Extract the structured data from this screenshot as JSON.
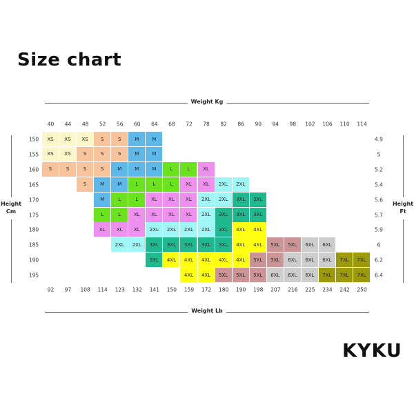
{
  "title": "Size chart",
  "brand": "KYKU",
  "chart_data": {
    "type": "table",
    "top_axis_label": "Weight Kg",
    "bottom_axis_label": "Weight Lb",
    "left_axis_label": [
      "Height",
      "Cm"
    ],
    "right_axis_label": [
      "Height",
      "Ft"
    ],
    "weight_kg": [
      "40",
      "44",
      "48",
      "52",
      "56",
      "60",
      "64",
      "68",
      "72",
      "78",
      "82",
      "86",
      "90",
      "94",
      "98",
      "102",
      "106",
      "110",
      "114"
    ],
    "weight_lb": [
      "92",
      "97",
      "108",
      "114",
      "123",
      "132",
      "141",
      "150",
      "159",
      "172",
      "180",
      "190",
      "198",
      "207",
      "216",
      "225",
      "234",
      "242",
      "250"
    ],
    "height_cm": [
      "150",
      "155",
      "160",
      "165",
      "170",
      "175",
      "180",
      "185",
      "190",
      "195"
    ],
    "height_ft": [
      "4.9",
      "5",
      "5.2",
      "5.4",
      "5.6",
      "5.7",
      "5.9",
      "6",
      "6.2",
      "6.4"
    ],
    "sizes": [
      [
        "XS",
        "XS",
        "XS",
        "S",
        "S",
        "M",
        "M",
        "",
        "",
        "",
        "",
        "",
        "",
        "",
        "",
        "",
        "",
        "",
        ""
      ],
      [
        "XS",
        "XS",
        "S",
        "S",
        "S",
        "M",
        "M",
        "",
        "",
        "",
        "",
        "",
        "",
        "",
        "",
        "",
        "",
        "",
        ""
      ],
      [
        "S",
        "S",
        "S",
        "S",
        "M",
        "M",
        "M",
        "L",
        "L",
        "XL",
        "",
        "",
        "",
        "",
        "",
        "",
        "",
        "",
        ""
      ],
      [
        "",
        "",
        "S",
        "M",
        "M",
        "L",
        "L",
        "L",
        "XL",
        "XL",
        "2XL",
        "2XL",
        "",
        "",
        "",
        "",
        "",
        "",
        ""
      ],
      [
        "",
        "",
        "",
        "M",
        "L",
        "L",
        "XL",
        "XL",
        "XL",
        "2XL",
        "2XL",
        "3XL",
        "3XL",
        "",
        "",
        "",
        "",
        "",
        ""
      ],
      [
        "",
        "",
        "",
        "L",
        "L",
        "XL",
        "XL",
        "XL",
        "XL",
        "2XL",
        "3XL",
        "3XL",
        "3XL",
        "",
        "",
        "",
        "",
        "",
        ""
      ],
      [
        "",
        "",
        "",
        "XL",
        "XL",
        "XL",
        "2XL",
        "2XL",
        "2XL",
        "2XL",
        "3XL",
        "4XL",
        "4XL",
        "",
        "",
        "",
        "",
        "",
        ""
      ],
      [
        "",
        "",
        "",
        "",
        "2XL",
        "2XL",
        "3XL",
        "3XL",
        "3XL",
        "3XL",
        "3XL",
        "4XL",
        "4XL",
        "5XL",
        "5XL",
        "6XL",
        "6XL",
        "",
        ""
      ],
      [
        "",
        "",
        "",
        "",
        "",
        "",
        "3XL",
        "4XL",
        "4XL",
        "4XL",
        "4XL",
        "4XL",
        "5XL",
        "5XL",
        "6XL",
        "6XL",
        "6XL",
        "7XL",
        "7XL"
      ],
      [
        "",
        "",
        "",
        "",
        "",
        "",
        "",
        "",
        "4XL",
        "4XL",
        "5XL",
        "5XL",
        "5XL",
        "6XL",
        "6XL",
        "6XL",
        "7XL",
        "7XL",
        "7XL"
      ]
    ],
    "size_colors": {
      "XS": "#fdf6c8",
      "S": "#f8c39a",
      "M": "#5db9ea",
      "L": "#6ae21c",
      "XL": "#ef8fef",
      "2XL": "#9ff6f6",
      "3XL": "#1fb98f",
      "4XL": "#ffff10",
      "5XL": "#cc9494",
      "6XL": "#cdcdcd",
      "7XL": "#9c9a0a"
    }
  }
}
